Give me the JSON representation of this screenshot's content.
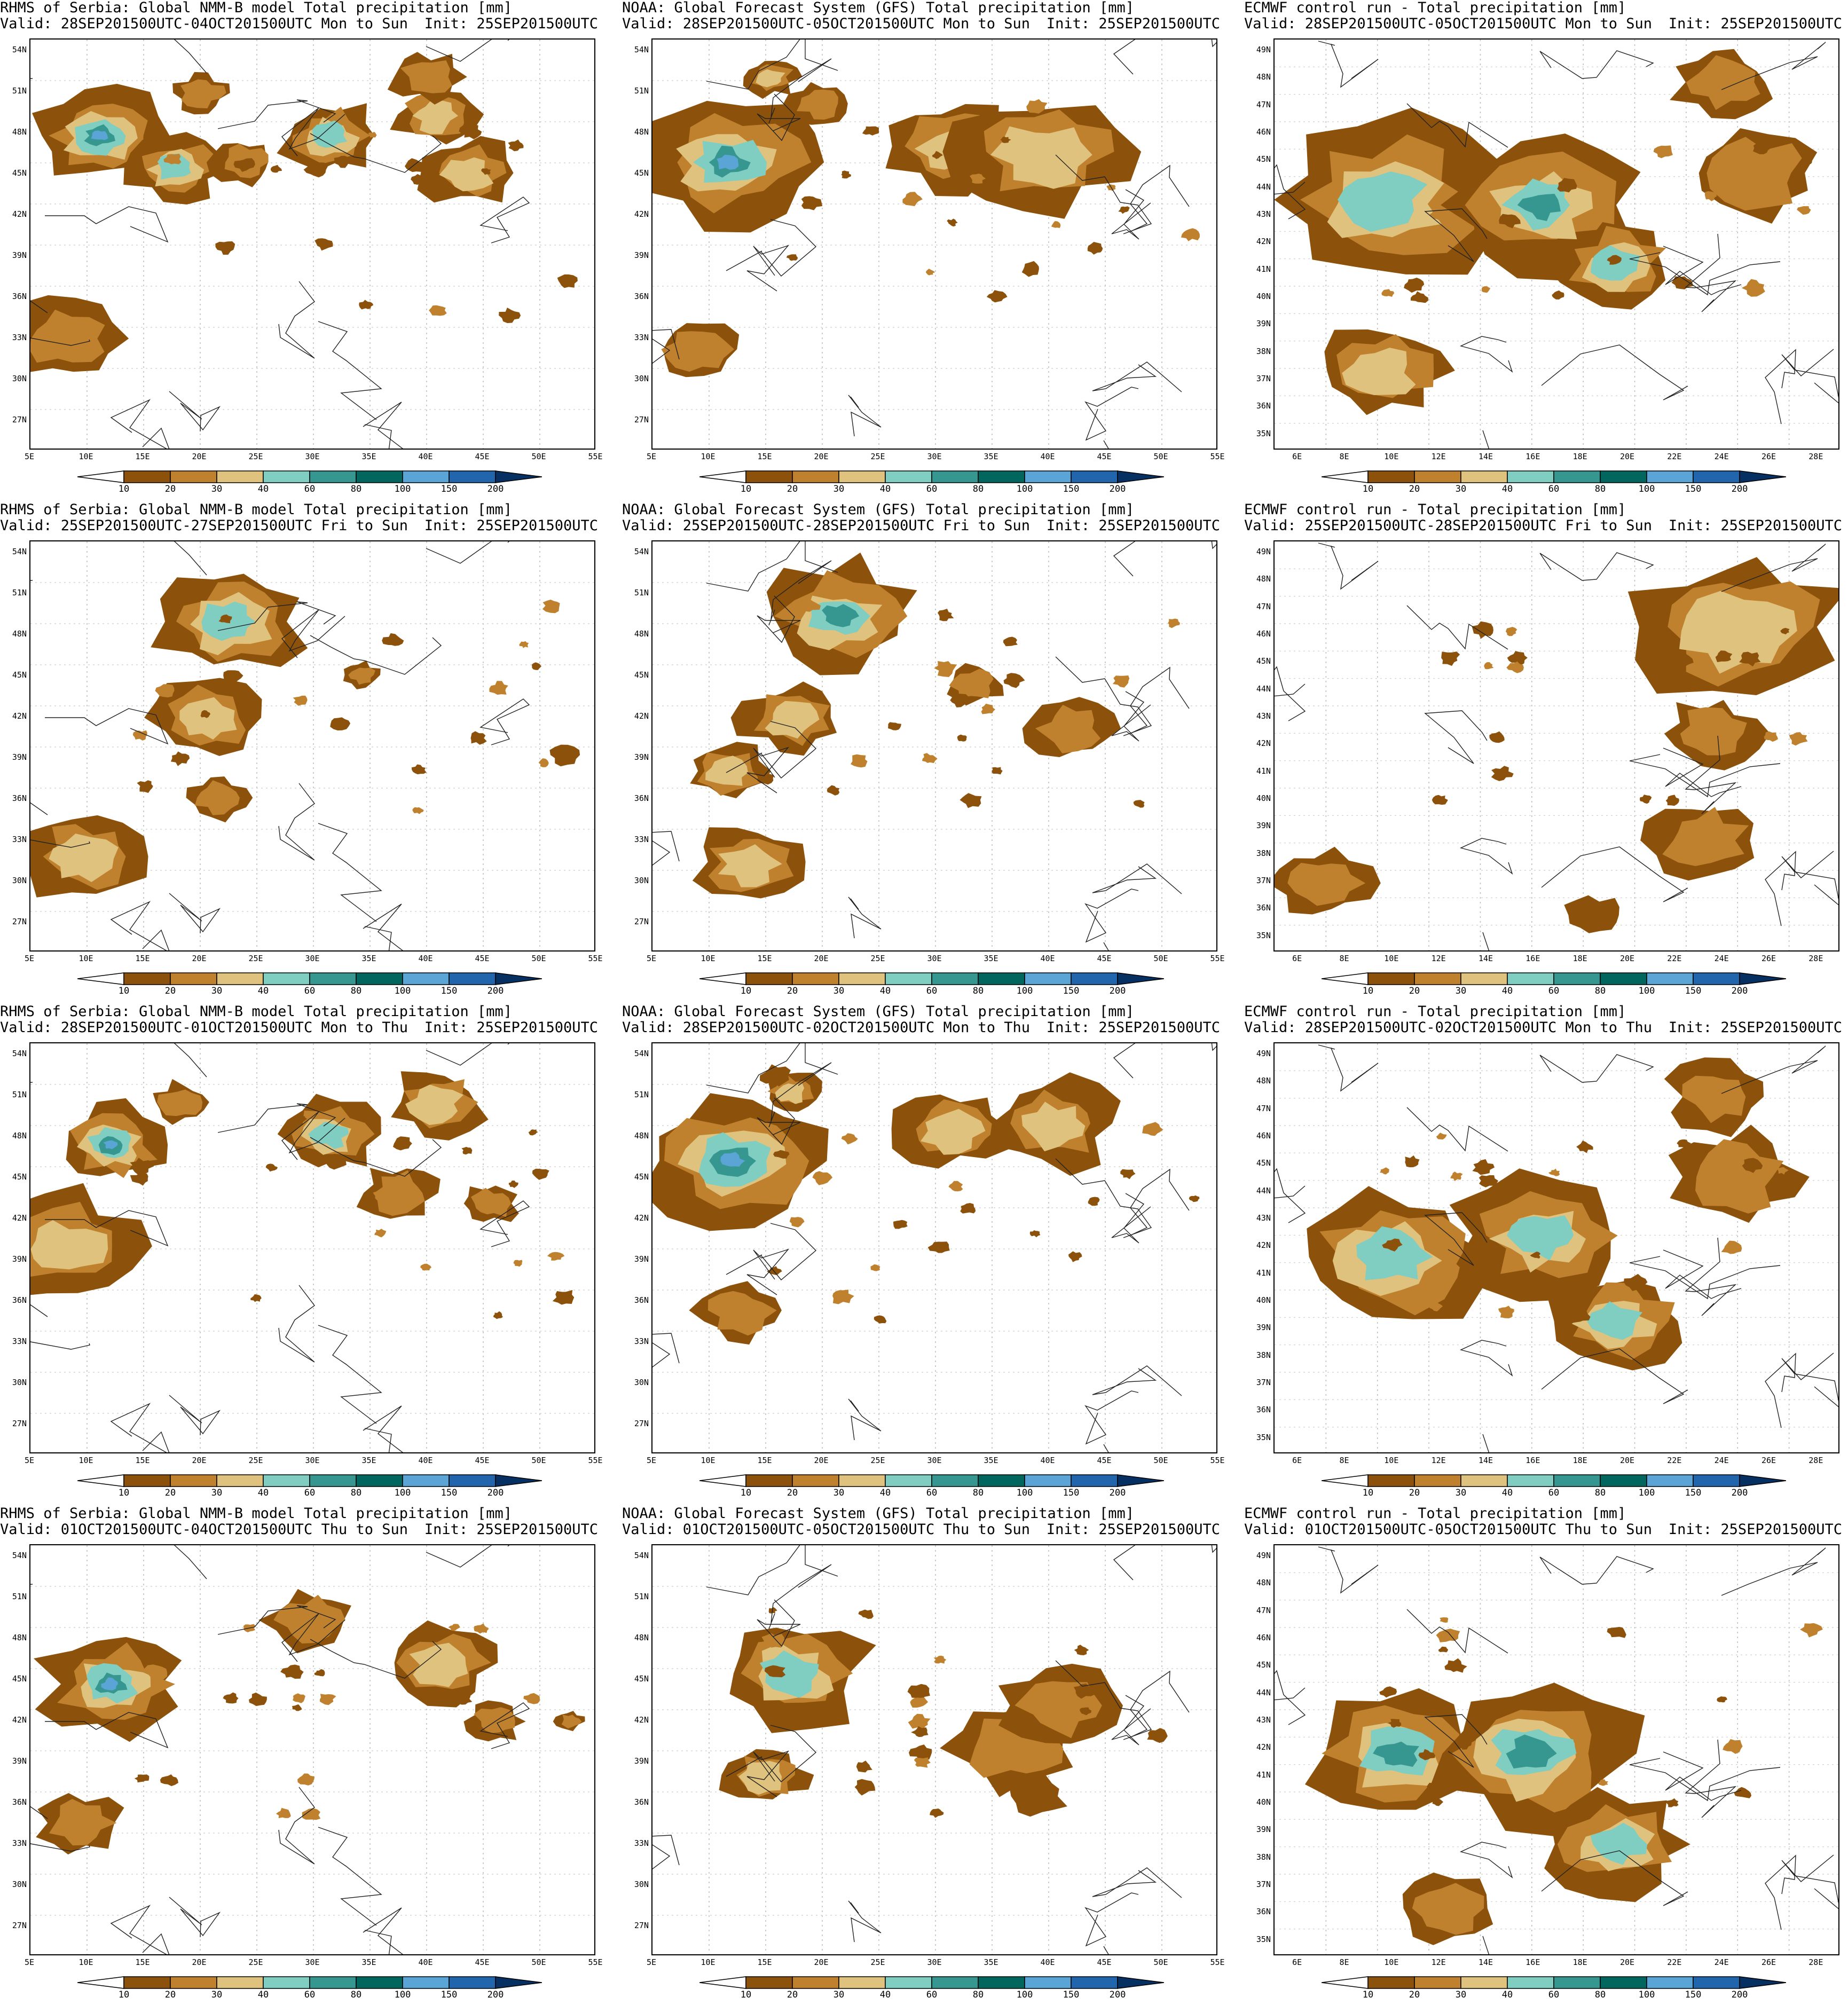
{
  "colorbar": {
    "levels": [
      "10",
      "20",
      "30",
      "40",
      "60",
      "80",
      "100",
      "150",
      "200"
    ],
    "colors": [
      "#ffffff",
      "#8c510a",
      "#bf812d",
      "#dfc27d",
      "#80cdc1",
      "#35978f",
      "#01665e",
      "#5aa5d6",
      "#2166ac",
      "#053061"
    ]
  },
  "nmmb": {
    "title": "RHMS of Serbia: Global NMM-B model Total precipitation [mm]",
    "lat_labels": [
      "54N",
      "51N",
      "48N",
      "45N",
      "42N",
      "39N",
      "36N",
      "33N",
      "30N",
      "27N"
    ],
    "lon_labels": [
      "5E",
      "10E",
      "15E",
      "20E",
      "25E",
      "30E",
      "35E",
      "40E",
      "45E",
      "50E",
      "55E"
    ]
  },
  "gfs": {
    "title": "NOAA: Global Forecast System (GFS) Total precipitation [mm]",
    "lat_labels": [
      "54N",
      "51N",
      "48N",
      "45N",
      "42N",
      "39N",
      "36N",
      "33N",
      "30N",
      "27N"
    ],
    "lon_labels": [
      "5E",
      "10E",
      "15E",
      "20E",
      "25E",
      "30E",
      "35E",
      "40E",
      "45E",
      "50E",
      "55E"
    ]
  },
  "ecmwf": {
    "title": "ECMWF control run - Total precipitation [mm]",
    "lat_labels": [
      "49N",
      "48N",
      "47N",
      "46N",
      "45N",
      "44N",
      "43N",
      "42N",
      "41N",
      "40N",
      "39N",
      "38N",
      "37N",
      "36N",
      "35N"
    ],
    "lon_labels": [
      "6E",
      "8E",
      "10E",
      "12E",
      "14E",
      "16E",
      "18E",
      "20E",
      "22E",
      "24E",
      "26E",
      "28E"
    ]
  },
  "rows": [
    {
      "nmmb_valid": "Valid: 28SEP201500UTC-04OCT201500UTC Mon to Sun",
      "gfs_valid": "Valid: 28SEP201500UTC-05OCT201500UTC Mon to Sun",
      "ecmwf_valid": "Valid: 28SEP201500UTC-05OCT201500UTC Mon to Sun",
      "init": "Init: 25SEP201500UTC"
    },
    {
      "nmmb_valid": "Valid: 25SEP201500UTC-27SEP201500UTC Fri to Sun",
      "gfs_valid": "Valid: 25SEP201500UTC-28SEP201500UTC Fri to Sun",
      "ecmwf_valid": "Valid: 25SEP201500UTC-28SEP201500UTC Fri to Sun",
      "init": "Init: 25SEP201500UTC"
    },
    {
      "nmmb_valid": "Valid: 28SEP201500UTC-01OCT201500UTC Mon to Thu",
      "gfs_valid": "Valid: 28SEP201500UTC-02OCT201500UTC Mon to Thu",
      "ecmwf_valid": "Valid: 28SEP201500UTC-02OCT201500UTC Mon to Thu",
      "init": "Init: 25SEP201500UTC"
    },
    {
      "nmmb_valid": "Valid: 01OCT201500UTC-04OCT201500UTC Thu to Sun",
      "gfs_valid": "Valid: 01OCT201500UTC-05OCT201500UTC Thu to Sun",
      "ecmwf_valid": "Valid: 01OCT201500UTC-05OCT201500UTC Thu to Sun",
      "init": "Init: 25SEP201500UTC"
    }
  ]
}
